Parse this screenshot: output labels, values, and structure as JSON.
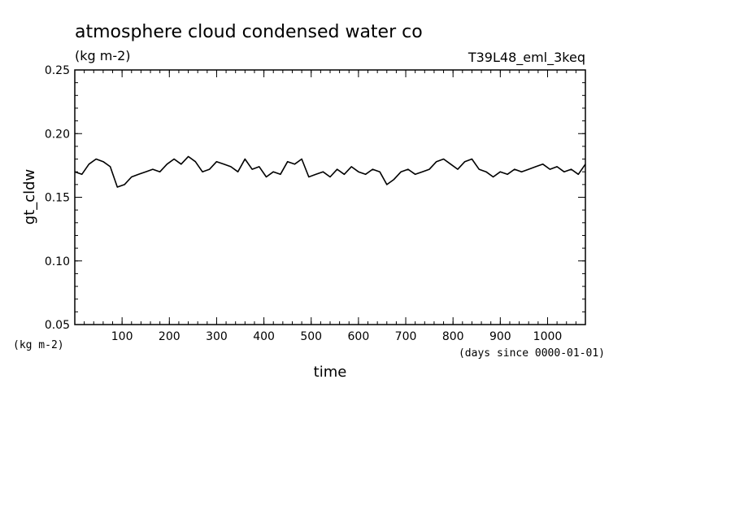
{
  "chart_data": {
    "type": "line",
    "title": "atmosphere cloud condensed water co",
    "subtitle": "(kg m-2)",
    "run_label": "T39L48_eml_3keq",
    "ylabel": "gt_cldw",
    "yunit": "(kg m-2)",
    "xlabel": "time",
    "xunit": "(days since 0000-01-01)",
    "ylim": [
      0.05,
      0.25
    ],
    "xlim": [
      0,
      1080
    ],
    "yticks": [
      "0.05",
      "0.10",
      "0.15",
      "0.20",
      "0.25"
    ],
    "xticks": [
      "100",
      "200",
      "300",
      "400",
      "500",
      "600",
      "700",
      "800",
      "900",
      "1000"
    ],
    "grid": false,
    "line_color": "#000000",
    "series": [
      {
        "x": [
          0,
          15,
          30,
          45,
          60,
          75,
          90,
          105,
          120,
          135,
          150,
          165,
          180,
          195,
          210,
          225,
          240,
          255,
          270,
          285,
          300,
          315,
          330,
          345,
          360,
          375,
          390,
          405,
          420,
          435,
          450,
          465,
          480,
          495,
          510,
          525,
          540,
          555,
          570,
          585,
          600,
          615,
          630,
          645,
          660,
          675,
          690,
          705,
          720,
          735,
          750,
          765,
          780,
          795,
          810,
          825,
          840,
          855,
          870,
          885,
          900,
          915,
          930,
          945,
          960,
          975,
          990,
          1005,
          1020,
          1035,
          1050,
          1065,
          1080
        ],
        "values": [
          0.17,
          0.168,
          0.176,
          0.18,
          0.178,
          0.174,
          0.158,
          0.16,
          0.166,
          0.168,
          0.17,
          0.172,
          0.17,
          0.176,
          0.18,
          0.176,
          0.182,
          0.178,
          0.17,
          0.172,
          0.178,
          0.176,
          0.174,
          0.17,
          0.18,
          0.172,
          0.174,
          0.166,
          0.17,
          0.168,
          0.178,
          0.176,
          0.18,
          0.166,
          0.168,
          0.17,
          0.166,
          0.172,
          0.168,
          0.174,
          0.17,
          0.168,
          0.172,
          0.17,
          0.16,
          0.164,
          0.17,
          0.172,
          0.168,
          0.17,
          0.172,
          0.178,
          0.18,
          0.176,
          0.172,
          0.178,
          0.18,
          0.172,
          0.17,
          0.166,
          0.17,
          0.168,
          0.172,
          0.17,
          0.172,
          0.174,
          0.176,
          0.172,
          0.174,
          0.17,
          0.172,
          0.168,
          0.176
        ]
      }
    ]
  }
}
